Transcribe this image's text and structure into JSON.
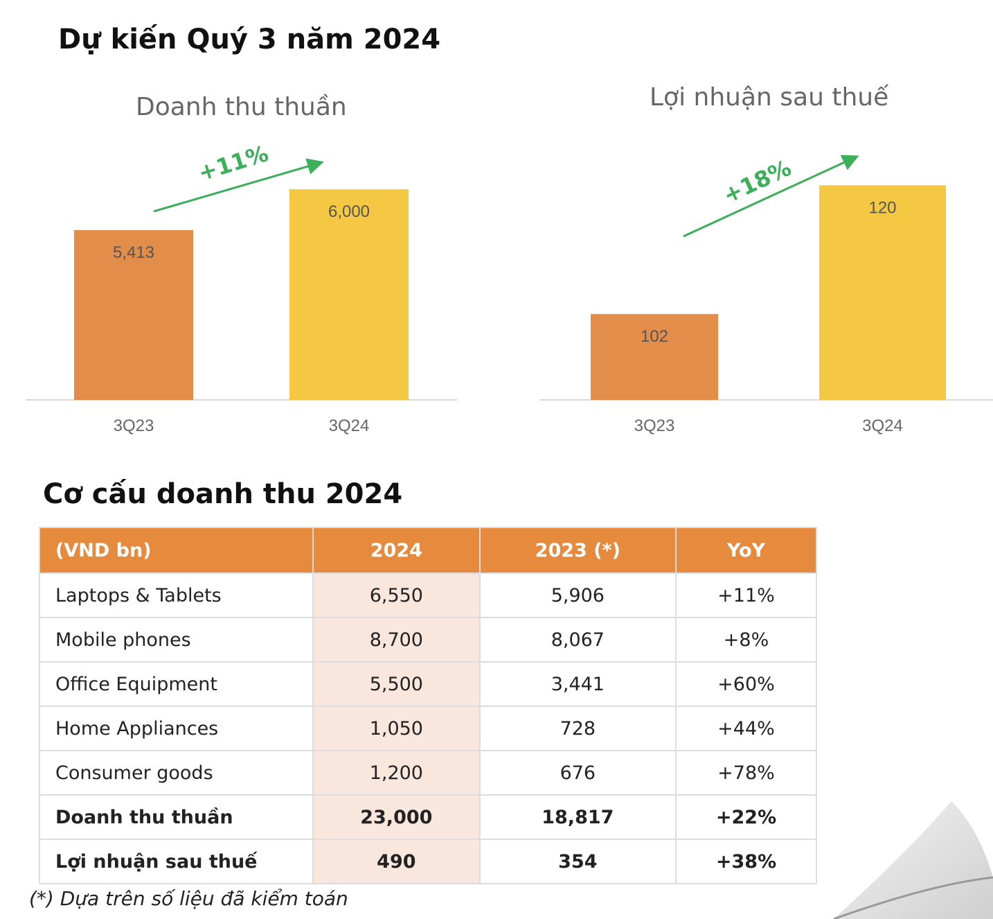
{
  "title": "Dự kiến Quý 3 năm 2024",
  "chart_data": [
    {
      "type": "bar",
      "title": "Doanh thu thuần",
      "categories": [
        "3Q23",
        "3Q24"
      ],
      "values": [
        5413,
        6000
      ],
      "value_labels": [
        "5,413",
        "6,000"
      ],
      "colors": [
        "#E38D4B",
        "#F4C842"
      ],
      "growth_label": "+11%",
      "ylim": [
        2975,
        6160
      ],
      "grid": false
    },
    {
      "type": "bar",
      "title": "Lợi nhuận sau thuế",
      "categories": [
        "3Q23",
        "3Q24"
      ],
      "values": [
        102,
        120
      ],
      "value_labels": [
        "102",
        "120"
      ],
      "colors": [
        "#E38D4B",
        "#F4C842"
      ],
      "growth_label": "+18%",
      "ylim": [
        90,
        121
      ],
      "grid": false
    }
  ],
  "table": {
    "title": "Cơ cấu doanh thu 2024",
    "headers": [
      "(VND bn)",
      "2024",
      "2023 (*)",
      "YoY"
    ],
    "rows": [
      [
        "Laptops & Tablets",
        "6,550",
        "5,906",
        "+11%"
      ],
      [
        "Mobile phones",
        "8,700",
        "8,067",
        "+8%"
      ],
      [
        "Office Equipment",
        "5,500",
        "3,441",
        "+60%"
      ],
      [
        "Home Appliances",
        "1,050",
        "728",
        "+44%"
      ],
      [
        "Consumer goods",
        "1,200",
        "676",
        "+78%"
      ],
      [
        "Doanh thu thuần",
        "23,000",
        "18,817",
        "+22%"
      ],
      [
        "Lợi nhuận sau thuế",
        "490",
        "354",
        "+38%"
      ]
    ],
    "footnote": "(*) Dựa trên số liệu đã kiểm toán",
    "header_color": "#E68A3E",
    "highlight_color": "#F9E7DE"
  },
  "arrow_color": "#3DAE5A"
}
